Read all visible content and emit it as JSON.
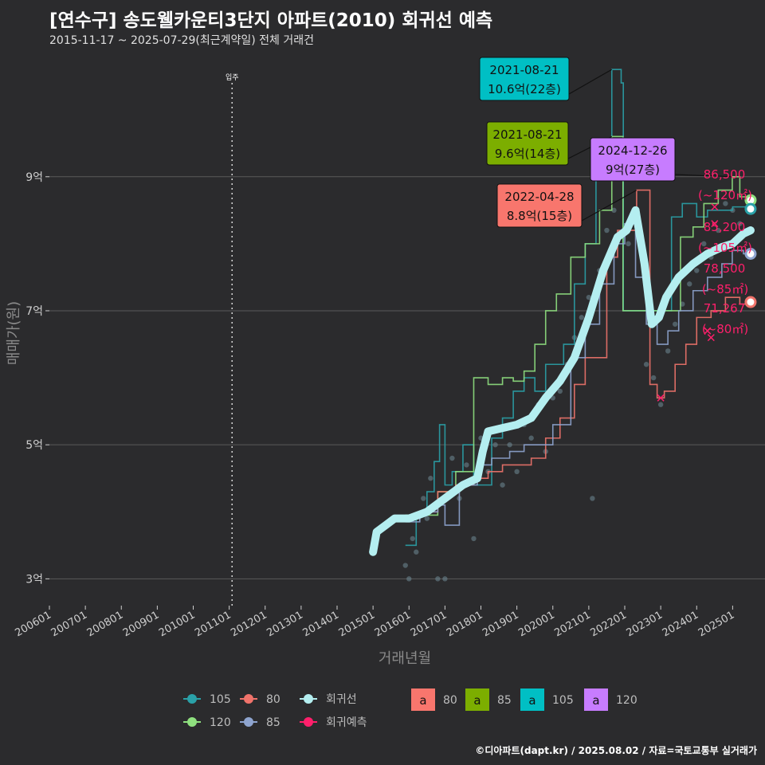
{
  "title": "[연수구] 송도웰카운티3단지 아파트(2010) 회귀선 예측",
  "subtitle": "2015-11-17 ~ 2025-07-29(최근계약일) 전체 거래건",
  "credit": "©디아파트(dapt.kr) / 2025.08.02 / 자료=국토교통부 실거래가",
  "colors": {
    "bg": "#2b2b2d",
    "grid": "#5a5a5a",
    "s80": "#f0736b",
    "s85": "#8ea4cf",
    "s105": "#2aa1a8",
    "s120": "#8fe07f",
    "regression": "#b4eef0",
    "forecast": "#ff1f6b",
    "box80": "#f8766d",
    "box85": "#7cae00",
    "box105": "#00bfc4",
    "box120": "#c77cff"
  },
  "chart_data": {
    "type": "line",
    "title": "[연수구] 송도웰카운티3단지 아파트(2010) 회귀선 예측",
    "xlabel": "거래년월",
    "ylabel": "매매가(원)",
    "xlim": [
      2006.0,
      2025.9
    ],
    "ylim": [
      2.6,
      10.9
    ],
    "yticks": [
      {
        "v": 3,
        "label": "3억"
      },
      {
        "v": 5,
        "label": "5억"
      },
      {
        "v": 7,
        "label": "7억"
      },
      {
        "v": 9,
        "label": "9억"
      }
    ],
    "xticks": [
      {
        "v": 2006.0,
        "label": "200601"
      },
      {
        "v": 2007.0,
        "label": "200701"
      },
      {
        "v": 2008.0,
        "label": "200801"
      },
      {
        "v": 2009.0,
        "label": "200901"
      },
      {
        "v": 2010.0,
        "label": "201001"
      },
      {
        "v": 2011.0,
        "label": "201101"
      },
      {
        "v": 2012.0,
        "label": "201201"
      },
      {
        "v": 2013.0,
        "label": "201301"
      },
      {
        "v": 2014.0,
        "label": "201401"
      },
      {
        "v": 2015.0,
        "label": "201501"
      },
      {
        "v": 2016.0,
        "label": "201601"
      },
      {
        "v": 2017.0,
        "label": "201701"
      },
      {
        "v": 2018.0,
        "label": "201801"
      },
      {
        "v": 2019.0,
        "label": "201901"
      },
      {
        "v": 2020.0,
        "label": "202001"
      },
      {
        "v": 2021.0,
        "label": "202101"
      },
      {
        "v": 2022.0,
        "label": "202201"
      },
      {
        "v": 2023.0,
        "label": "202301"
      },
      {
        "v": 2024.0,
        "label": "202401"
      },
      {
        "v": 2025.0,
        "label": "202501"
      }
    ],
    "move_in": {
      "x": 2011.08,
      "label": "입주"
    },
    "series": [
      {
        "name": "105",
        "color_key": "s105",
        "points": [
          [
            2015.9,
            3.5
          ],
          [
            2016.2,
            3.95
          ],
          [
            2016.5,
            4.3
          ],
          [
            2016.7,
            4.75
          ],
          [
            2016.85,
            5.3
          ],
          [
            2017.0,
            4.4
          ],
          [
            2017.2,
            4.6
          ],
          [
            2017.5,
            5.0
          ],
          [
            2017.8,
            4.4
          ],
          [
            2018.0,
            4.4
          ],
          [
            2018.3,
            5.1
          ],
          [
            2018.6,
            5.4
          ],
          [
            2018.9,
            5.8
          ],
          [
            2019.2,
            6.0
          ],
          [
            2019.5,
            5.8
          ],
          [
            2019.8,
            6.2
          ],
          [
            2020.0,
            6.2
          ],
          [
            2020.3,
            6.5
          ],
          [
            2020.6,
            7.4
          ],
          [
            2020.9,
            8.0
          ],
          [
            2021.2,
            9.0
          ],
          [
            2021.45,
            9.4
          ],
          [
            2021.64,
            10.6
          ],
          [
            2021.9,
            10.4
          ],
          [
            2021.96,
            7.0
          ],
          [
            2022.2,
            7.0
          ],
          [
            2022.5,
            7.0
          ],
          [
            2022.8,
            7.0
          ],
          [
            2023.1,
            7.0
          ],
          [
            2023.3,
            8.4
          ],
          [
            2023.6,
            8.6
          ],
          [
            2024.0,
            8.4
          ],
          [
            2024.3,
            8.5
          ],
          [
            2024.6,
            8.5
          ],
          [
            2025.0,
            8.55
          ],
          [
            2025.5,
            8.52
          ]
        ]
      },
      {
        "name": "120",
        "color_key": "s120",
        "points": [
          [
            2015.9,
            3.95
          ],
          [
            2016.3,
            3.95
          ],
          [
            2016.8,
            4.3
          ],
          [
            2017.3,
            4.6
          ],
          [
            2017.8,
            6.0
          ],
          [
            2018.2,
            5.9
          ],
          [
            2018.6,
            6.0
          ],
          [
            2018.9,
            5.95
          ],
          [
            2019.2,
            6.1
          ],
          [
            2019.5,
            6.5
          ],
          [
            2019.8,
            7.0
          ],
          [
            2020.1,
            7.25
          ],
          [
            2020.5,
            7.8
          ],
          [
            2020.9,
            8.0
          ],
          [
            2021.3,
            8.5
          ],
          [
            2021.64,
            9.6
          ],
          [
            2021.95,
            7.0
          ],
          [
            2022.3,
            7.0
          ],
          [
            2022.7,
            7.0
          ],
          [
            2023.0,
            7.0
          ],
          [
            2023.3,
            7.0
          ],
          [
            2023.55,
            8.1
          ],
          [
            2023.9,
            8.25
          ],
          [
            2024.2,
            8.6
          ],
          [
            2024.6,
            8.8
          ],
          [
            2024.99,
            9.0
          ],
          [
            2025.2,
            8.7
          ],
          [
            2025.5,
            8.65
          ]
        ]
      },
      {
        "name": "80",
        "color_key": "s80",
        "points": [
          [
            2015.9,
            3.9
          ],
          [
            2016.3,
            4.0
          ],
          [
            2016.8,
            4.3
          ],
          [
            2017.3,
            4.4
          ],
          [
            2017.8,
            4.5
          ],
          [
            2018.2,
            4.6
          ],
          [
            2018.6,
            4.7
          ],
          [
            2019.0,
            4.7
          ],
          [
            2019.4,
            4.8
          ],
          [
            2019.8,
            5.1
          ],
          [
            2020.2,
            5.4
          ],
          [
            2020.6,
            5.9
          ],
          [
            2020.9,
            6.3
          ],
          [
            2021.3,
            6.3
          ],
          [
            2021.5,
            7.8
          ],
          [
            2021.8,
            8.2
          ],
          [
            2022.33,
            8.8
          ],
          [
            2022.5,
            8.8
          ],
          [
            2022.7,
            5.9
          ],
          [
            2022.9,
            5.7
          ],
          [
            2023.1,
            5.8
          ],
          [
            2023.4,
            6.2
          ],
          [
            2023.7,
            6.5
          ],
          [
            2024.0,
            6.9
          ],
          [
            2024.4,
            7.0
          ],
          [
            2024.8,
            7.2
          ],
          [
            2025.2,
            7.1
          ],
          [
            2025.5,
            7.13
          ]
        ]
      },
      {
        "name": "85",
        "color_key": "s85",
        "points": [
          [
            2015.9,
            3.85
          ],
          [
            2016.3,
            4.0
          ],
          [
            2016.8,
            4.1
          ],
          [
            2017.0,
            3.8
          ],
          [
            2017.4,
            4.4
          ],
          [
            2017.9,
            4.7
          ],
          [
            2018.3,
            4.8
          ],
          [
            2018.8,
            4.9
          ],
          [
            2019.2,
            5.0
          ],
          [
            2019.6,
            5.0
          ],
          [
            2020.0,
            5.3
          ],
          [
            2020.5,
            6.3
          ],
          [
            2020.9,
            6.8
          ],
          [
            2021.3,
            7.4
          ],
          [
            2021.7,
            8.0
          ],
          [
            2022.0,
            8.3
          ],
          [
            2022.3,
            7.5
          ],
          [
            2022.6,
            6.8
          ],
          [
            2022.9,
            6.5
          ],
          [
            2023.2,
            6.7
          ],
          [
            2023.5,
            7.0
          ],
          [
            2023.9,
            7.3
          ],
          [
            2024.3,
            7.5
          ],
          [
            2024.7,
            7.7
          ],
          [
            2024.99,
            7.9
          ],
          [
            2025.3,
            7.85
          ],
          [
            2025.5,
            7.85
          ]
        ]
      }
    ],
    "regression": {
      "name": "회귀선",
      "color_key": "regression",
      "points": [
        [
          2015.0,
          3.4
        ],
        [
          2015.1,
          3.7
        ],
        [
          2015.35,
          3.8
        ],
        [
          2015.6,
          3.9
        ],
        [
          2016.0,
          3.9
        ],
        [
          2016.5,
          4.0
        ],
        [
          2017.0,
          4.2
        ],
        [
          2017.5,
          4.4
        ],
        [
          2017.9,
          4.5
        ],
        [
          2018.05,
          4.9
        ],
        [
          2018.2,
          5.2
        ],
        [
          2018.6,
          5.25
        ],
        [
          2019.0,
          5.3
        ],
        [
          2019.4,
          5.4
        ],
        [
          2019.8,
          5.7
        ],
        [
          2020.2,
          5.95
        ],
        [
          2020.6,
          6.3
        ],
        [
          2021.0,
          6.9
        ],
        [
          2021.4,
          7.6
        ],
        [
          2021.8,
          8.1
        ],
        [
          2022.05,
          8.2
        ],
        [
          2022.3,
          8.5
        ],
        [
          2022.55,
          7.7
        ],
        [
          2022.75,
          6.8
        ],
        [
          2022.95,
          6.9
        ],
        [
          2023.15,
          7.2
        ],
        [
          2023.5,
          7.5
        ],
        [
          2023.9,
          7.7
        ],
        [
          2024.3,
          7.85
        ],
        [
          2024.7,
          7.95
        ],
        [
          2025.0,
          8.0
        ],
        [
          2025.3,
          8.15
        ],
        [
          2025.5,
          8.2
        ]
      ]
    },
    "scatter": [
      [
        2015.9,
        3.2
      ],
      [
        2016.0,
        3.0
      ],
      [
        2016.1,
        3.6
      ],
      [
        2016.2,
        3.4
      ],
      [
        2016.4,
        4.2
      ],
      [
        2016.5,
        3.9
      ],
      [
        2016.6,
        4.5
      ],
      [
        2016.8,
        3.0
      ],
      [
        2017.0,
        3.0
      ],
      [
        2017.2,
        4.8
      ],
      [
        2017.4,
        4.2
      ],
      [
        2017.6,
        4.7
      ],
      [
        2017.8,
        3.6
      ],
      [
        2018.0,
        5.1
      ],
      [
        2018.2,
        4.6
      ],
      [
        2018.4,
        5.0
      ],
      [
        2018.6,
        4.4
      ],
      [
        2018.8,
        5.0
      ],
      [
        2019.0,
        4.6
      ],
      [
        2019.2,
        5.3
      ],
      [
        2019.4,
        5.1
      ],
      [
        2019.6,
        5.6
      ],
      [
        2019.8,
        4.9
      ],
      [
        2020.0,
        5.7
      ],
      [
        2020.2,
        5.8
      ],
      [
        2020.4,
        6.2
      ],
      [
        2020.6,
        6.6
      ],
      [
        2020.8,
        6.9
      ],
      [
        2021.0,
        7.2
      ],
      [
        2021.1,
        4.2
      ],
      [
        2021.3,
        7.6
      ],
      [
        2021.5,
        8.2
      ],
      [
        2021.7,
        8.5
      ],
      [
        2021.9,
        9.5
      ],
      [
        2022.1,
        8.0
      ],
      [
        2022.3,
        8.4
      ],
      [
        2022.6,
        6.2
      ],
      [
        2022.8,
        6.0
      ],
      [
        2023.0,
        5.6
      ],
      [
        2023.2,
        6.4
      ],
      [
        2023.4,
        6.8
      ],
      [
        2023.6,
        7.1
      ],
      [
        2023.8,
        7.4
      ],
      [
        2024.0,
        7.6
      ],
      [
        2024.2,
        8.0
      ],
      [
        2024.4,
        7.8
      ],
      [
        2024.6,
        8.2
      ],
      [
        2024.8,
        8.6
      ],
      [
        2025.0,
        8.5
      ],
      [
        2025.2,
        8.3
      ]
    ],
    "forecast": [
      [
        2024.3,
        6.7
      ],
      [
        2024.5,
        8.3
      ],
      [
        2024.5,
        8.55
      ],
      [
        2023.0,
        5.7
      ],
      [
        2024.4,
        6.6
      ]
    ],
    "end_points": [
      {
        "name": "120",
        "x": 2025.5,
        "y": 8.65
      },
      {
        "name": "105",
        "x": 2025.5,
        "y": 8.52
      },
      {
        "name": "85",
        "x": 2025.5,
        "y": 7.85
      },
      {
        "name": "80",
        "x": 2025.5,
        "y": 7.13
      }
    ],
    "annotations": [
      {
        "date": "2021-08-21",
        "price": "10.6억(22층)",
        "box_key": "box105",
        "x": 2021.64,
        "y": 10.6
      },
      {
        "date": "2021-08-21",
        "price": "9.6억(14층)",
        "box_key": "box85",
        "x": 2021.64,
        "y": 9.6
      },
      {
        "date": "2024-12-26",
        "price": "9억(27층)",
        "box_key": "box120",
        "x": 2024.99,
        "y": 9.0
      },
      {
        "date": "2022-04-28",
        "price": "8.8억(15층)",
        "box_key": "box80",
        "x": 2022.33,
        "y": 8.8
      }
    ],
    "end_labels": [
      {
        "value": "86,500",
        "area": "(~120㎡)"
      },
      {
        "value": "85,200",
        "area": "(~105㎡)"
      },
      {
        "value": "78,500",
        "area": "(~85㎡)"
      },
      {
        "value": "71,267",
        "area": "(~80㎡)"
      }
    ],
    "legend": {
      "lines": [
        {
          "name": "105",
          "color_key": "s105"
        },
        {
          "name": "80",
          "color_key": "s80"
        },
        {
          "name": "회귀선",
          "color_key": "regression"
        },
        {
          "name": "120",
          "color_key": "s120"
        },
        {
          "name": "85",
          "color_key": "s85"
        },
        {
          "name": "회귀예측",
          "color_key": "forecast"
        }
      ],
      "boxes": [
        {
          "glyph": "a",
          "name": "80",
          "color_key": "box80"
        },
        {
          "glyph": "a",
          "name": "85",
          "color_key": "box85"
        },
        {
          "glyph": "a",
          "name": "105",
          "color_key": "box105"
        },
        {
          "glyph": "a",
          "name": "120",
          "color_key": "box120"
        }
      ]
    }
  }
}
